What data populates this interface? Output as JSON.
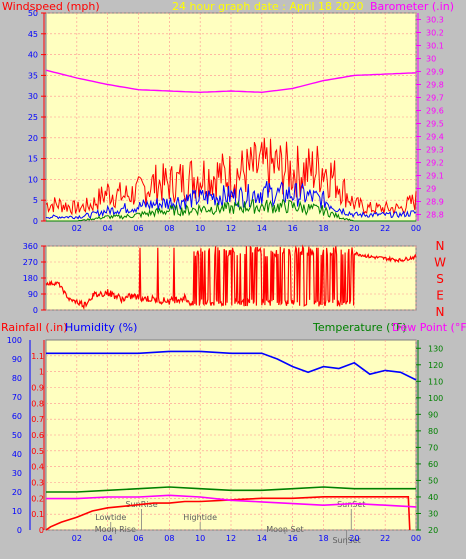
{
  "colors": {
    "background": "#c0c0c0",
    "plot_bg": "#ffffc0",
    "grid": "#ff9090",
    "wind": "#ff0000",
    "wind_avg": "#0000ff",
    "wind_low": "#008000",
    "barometer": "#ff00ff",
    "direction": "#ff0000",
    "rainfall": "#ff0000",
    "humidity": "#0000ff",
    "temperature": "#008000",
    "dewpoint": "#ff00ff",
    "axis_text_blue": "#0000ff",
    "title_yellow": "#ffff00",
    "label_text": "#606060"
  },
  "chart_data": [
    {
      "type": "line",
      "title": "24 hour graph date : April 18 2020",
      "left_label": "Windspeed (mph)",
      "right_label": "Barometer (.in)",
      "x_ticks": [
        "02",
        "04",
        "06",
        "08",
        "10",
        "12",
        "14",
        "16",
        "18",
        "20",
        "22",
        "00"
      ],
      "y_left_ticks": [
        0,
        5,
        10,
        15,
        20,
        25,
        30,
        35,
        40,
        45,
        50
      ],
      "y_left_range": [
        0,
        50
      ],
      "y_right_ticks": [
        "28.8",
        "28.9",
        "29",
        "29.1",
        "29.2",
        "29.3",
        "29.4",
        "29.5",
        "29.6",
        "29.7",
        "29.8",
        "29.9",
        "30",
        "30.1",
        "30.2",
        "30.3"
      ],
      "y_right_range": [
        28.75,
        30.35
      ],
      "x_range": [
        0,
        24
      ],
      "series": [
        {
          "name": "Windspeed (mph)",
          "axis": "left",
          "kind": "gust",
          "x": [
            0,
            1,
            2,
            3,
            4,
            5,
            6,
            7,
            8,
            9,
            10,
            11,
            12,
            13,
            14,
            15,
            16,
            17,
            18,
            19,
            20,
            21,
            22,
            23,
            24
          ],
          "values": [
            4,
            4,
            3,
            4,
            7,
            6,
            7,
            9,
            9,
            10,
            11,
            11,
            11,
            12,
            13,
            13,
            12,
            12,
            13,
            9,
            4,
            3,
            3,
            3,
            5
          ]
        },
        {
          "name": "Average windspeed",
          "axis": "left",
          "kind": "avg",
          "x": [
            0,
            1,
            2,
            3,
            4,
            5,
            6,
            7,
            8,
            9,
            10,
            11,
            12,
            13,
            14,
            15,
            16,
            17,
            18,
            19,
            20,
            21,
            22,
            23,
            24
          ],
          "values": [
            1,
            1,
            1,
            1.5,
            2.5,
            3,
            3.5,
            4,
            4.5,
            5,
            5.5,
            6,
            6,
            6,
            7,
            6.5,
            6.5,
            6,
            5,
            3,
            1.5,
            1.5,
            1.5,
            1.5,
            2
          ]
        },
        {
          "name": "Lowest windspeed",
          "axis": "left",
          "kind": "low",
          "x": [
            0,
            1,
            2,
            3,
            4,
            5,
            6,
            7,
            8,
            9,
            10,
            11,
            12,
            13,
            14,
            15,
            16,
            17,
            18,
            19,
            20,
            21,
            22,
            23,
            24
          ],
          "values": [
            0,
            0,
            0,
            0.5,
            1,
            1,
            1.5,
            2,
            2.5,
            2.5,
            3,
            3,
            3,
            3.5,
            3.5,
            3.5,
            3.5,
            3,
            2.5,
            1,
            0,
            0,
            0,
            0,
            0
          ]
        },
        {
          "name": "Barometer (.in)",
          "axis": "right",
          "x": [
            0,
            2,
            4,
            6,
            8,
            10,
            12,
            14,
            16,
            18,
            20,
            22,
            24
          ],
          "values": [
            29.91,
            29.85,
            29.8,
            29.76,
            29.75,
            29.74,
            29.75,
            29.74,
            29.77,
            29.83,
            29.87,
            29.88,
            29.89
          ]
        }
      ]
    },
    {
      "type": "line",
      "title": "",
      "right_label_letters": [
        "N",
        "W",
        "S",
        "E",
        "N"
      ],
      "y_ticks": [
        0,
        90,
        180,
        270,
        360
      ],
      "y_range": [
        0,
        360
      ],
      "x_range": [
        0,
        24
      ],
      "series": [
        {
          "name": "Wind direction",
          "x": [
            0,
            0.8,
            1.5,
            2.5,
            3,
            4,
            5,
            5.6,
            6,
            7,
            8,
            9,
            9.5,
            10,
            11,
            12,
            13,
            14,
            15,
            16,
            17,
            18,
            19,
            19.5,
            20,
            21,
            22,
            23,
            24
          ],
          "values": [
            150,
            150,
            60,
            30,
            80,
            100,
            60,
            80,
            70,
            60,
            50,
            70,
            30,
            230,
            180,
            240,
            150,
            180,
            290,
            200,
            310,
            260,
            200,
            50,
            320,
            300,
            290,
            280,
            300
          ]
        }
      ]
    },
    {
      "type": "line",
      "title": "",
      "left_label": "Rainfall (.in)",
      "mid_label": "Humidity (%)",
      "right_label_a": "Temperature (°F)",
      "right_label_b": "Dew Point (°F)",
      "y_rain_ticks": [
        "0",
        "0.1",
        "0.2",
        "0.3",
        "0.4",
        "0.5",
        "0.6",
        "0.7",
        "0.8",
        "0.9",
        "1",
        "1.1"
      ],
      "y_rain_range": [
        0,
        1.2
      ],
      "y_hum_ticks": [
        0,
        10,
        20,
        30,
        40,
        50,
        60,
        70,
        80,
        90,
        100
      ],
      "y_hum_range": [
        0,
        100
      ],
      "y_temp_ticks": [
        20,
        30,
        40,
        50,
        60,
        70,
        80,
        90,
        100,
        110,
        120,
        130
      ],
      "y_temp_range": [
        20,
        135
      ],
      "x_range": [
        0,
        24
      ],
      "series": [
        {
          "name": "Rainfall (.in)",
          "axis": "rain",
          "x": [
            0,
            0.3,
            1,
            2,
            3,
            4,
            5,
            6,
            7,
            8,
            9,
            10,
            12,
            14,
            16,
            18,
            20,
            22,
            23.5,
            23.6
          ],
          "values": [
            0,
            0.02,
            0.05,
            0.08,
            0.12,
            0.14,
            0.15,
            0.16,
            0.17,
            0.17,
            0.18,
            0.18,
            0.19,
            0.2,
            0.2,
            0.21,
            0.21,
            0.21,
            0.21,
            0
          ]
        },
        {
          "name": "Humidity (%)",
          "axis": "humidity",
          "x": [
            0,
            2,
            4,
            6,
            8,
            10,
            12,
            14,
            15,
            16,
            17,
            18,
            19,
            20,
            21,
            22,
            23,
            24
          ],
          "values": [
            93,
            93,
            93,
            93,
            94,
            94,
            93,
            93,
            90,
            86,
            83,
            86,
            85,
            88,
            82,
            84,
            83,
            79
          ]
        },
        {
          "name": "Temperature (°F)",
          "axis": "temp",
          "x": [
            0,
            2,
            4,
            6,
            8,
            10,
            12,
            14,
            16,
            18,
            20,
            22,
            24
          ],
          "values": [
            43,
            43,
            44,
            45,
            46,
            45,
            44,
            44,
            45,
            46,
            45,
            45,
            45
          ]
        },
        {
          "name": "Dew Point (°F)",
          "axis": "temp",
          "x": [
            0,
            2,
            4,
            6,
            8,
            10,
            12,
            14,
            16,
            18,
            20,
            22,
            24
          ],
          "values": [
            39,
            39,
            40,
            40,
            41,
            40,
            38,
            37,
            36,
            35,
            36,
            35,
            34
          ]
        }
      ],
      "annotations": [
        {
          "text": "SunRise",
          "x": 6.2,
          "row": 1
        },
        {
          "text": "Lowtide",
          "x": 4.2,
          "row": 2
        },
        {
          "text": "Moon Rise",
          "x": 4.5,
          "row": 3
        },
        {
          "text": "Hightide",
          "x": 10.0,
          "row": 2
        },
        {
          "text": "Moon Set",
          "x": 15.5,
          "row": 3
        },
        {
          "text": "SunSet",
          "x": 19.8,
          "row": 1
        },
        {
          "text": "SunSet",
          "x": 19.5,
          "row": 4
        }
      ]
    }
  ]
}
